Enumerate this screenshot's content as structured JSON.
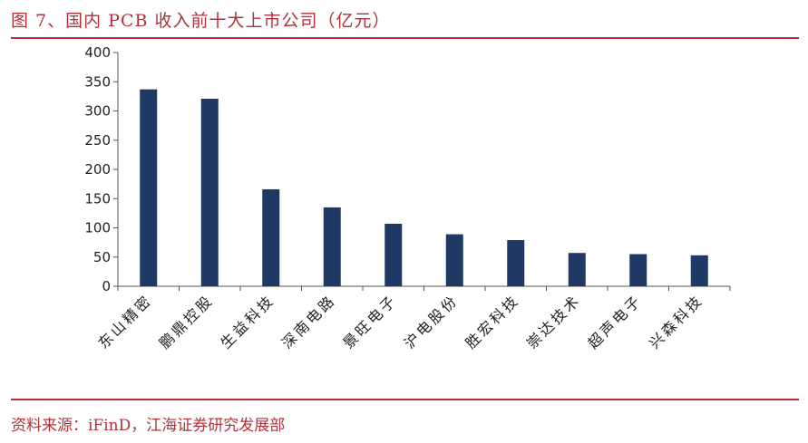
{
  "header": {
    "title": "图 7、国内 PCB 收入前十大上市公司（亿元）"
  },
  "footer": {
    "source": "资料来源：iFinD，江海证券研究发展部"
  },
  "colors": {
    "accent": "#b0313a",
    "bar": "#1f3864",
    "axis": "#555555"
  },
  "chart_data": {
    "type": "bar",
    "title": "图 7、国内 PCB 收入前十大上市公司（亿元）",
    "categories": [
      "东山精密",
      "鹏鼎控股",
      "生益科技",
      "深南电路",
      "景旺电子",
      "沪电股份",
      "胜宏科技",
      "崇达技术",
      "超声电子",
      "兴森科技"
    ],
    "values": [
      337,
      321,
      166,
      135,
      107,
      89,
      79,
      57,
      55,
      53
    ],
    "ylim": [
      0,
      400
    ],
    "yticks": [
      "0",
      "50",
      "100",
      "150",
      "200",
      "250",
      "300",
      "350",
      "400"
    ],
    "xlabel": "",
    "ylabel": "",
    "grid": false,
    "legend": "none"
  }
}
